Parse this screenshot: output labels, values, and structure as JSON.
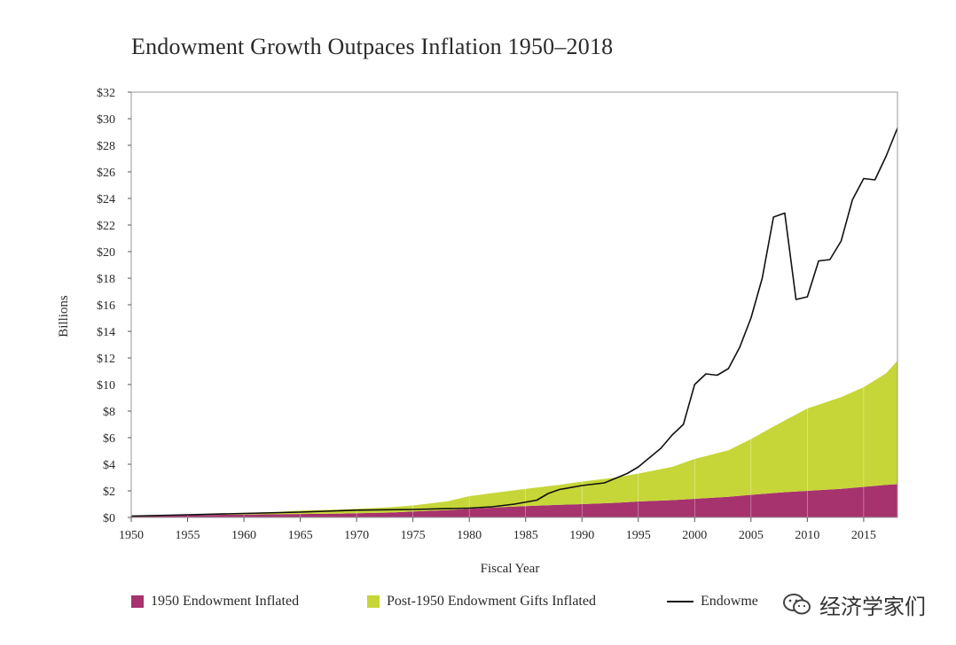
{
  "title": "Endowment Growth Outpaces Inflation 1950–2018",
  "chart_data": {
    "type": "area",
    "title": "Endowment Growth Outpaces Inflation 1950–2018",
    "xlabel": "Fiscal Year",
    "ylabel": "Billions",
    "xlim": [
      1950,
      2018
    ],
    "ylim": [
      0,
      32
    ],
    "x_ticks": [
      "1950",
      "1955",
      "1960",
      "1965",
      "1970",
      "1975",
      "1980",
      "1985",
      "1990",
      "1995",
      "2000",
      "2005",
      "2010",
      "2015"
    ],
    "y_ticks": [
      "$0",
      "$2",
      "$4",
      "$6",
      "$8",
      "$10",
      "$12",
      "$14",
      "$16",
      "$18",
      "$20",
      "$22",
      "$24",
      "$26",
      "$28",
      "$30",
      "$32"
    ],
    "grid": "vertical",
    "legend_position": "bottom",
    "x": [
      1950,
      1952,
      1955,
      1958,
      1960,
      1963,
      1965,
      1968,
      1970,
      1973,
      1975,
      1978,
      1980,
      1983,
      1985,
      1988,
      1990,
      1993,
      1995,
      1998,
      2000,
      2003,
      2005,
      2008,
      2010,
      2013,
      2015,
      2017,
      2018
    ],
    "series": [
      {
        "name": "1950 Endowment Inflated",
        "type": "area",
        "color": "#a6336e",
        "values": [
          0.15,
          0.16,
          0.17,
          0.2,
          0.22,
          0.24,
          0.26,
          0.28,
          0.32,
          0.37,
          0.45,
          0.55,
          0.65,
          0.78,
          0.85,
          0.95,
          1.0,
          1.1,
          1.2,
          1.3,
          1.4,
          1.55,
          1.7,
          1.9,
          2.0,
          2.15,
          2.3,
          2.45,
          2.5
        ]
      },
      {
        "name": "Post-1950 Endowment Gifts Inflated",
        "type": "stacked-area",
        "color": "#c6d638",
        "values": [
          0.0,
          0.02,
          0.05,
          0.08,
          0.12,
          0.18,
          0.26,
          0.3,
          0.33,
          0.4,
          0.45,
          0.65,
          0.95,
          1.15,
          1.3,
          1.5,
          1.7,
          1.9,
          2.1,
          2.5,
          3.0,
          3.5,
          4.2,
          5.4,
          6.2,
          6.9,
          7.5,
          8.4,
          9.3
        ]
      },
      {
        "name": "Endowment Value",
        "type": "line",
        "color": "#111111",
        "x": [
          1950,
          1955,
          1960,
          1965,
          1970,
          1975,
          1980,
          1982,
          1984,
          1986,
          1987,
          1988,
          1990,
          1992,
          1994,
          1995,
          1996,
          1997,
          1998,
          1999,
          2000,
          2001,
          2002,
          2003,
          2004,
          2005,
          2006,
          2007,
          2008,
          2009,
          2010,
          2011,
          2012,
          2013,
          2014,
          2015,
          2016,
          2017,
          2018
        ],
        "values": [
          0.1,
          0.2,
          0.3,
          0.4,
          0.55,
          0.6,
          0.7,
          0.8,
          1.0,
          1.3,
          1.8,
          2.1,
          2.4,
          2.6,
          3.3,
          3.8,
          4.5,
          5.2,
          6.2,
          7.0,
          10.0,
          10.8,
          10.7,
          11.2,
          12.8,
          15.0,
          18.0,
          22.6,
          22.9,
          16.4,
          16.6,
          19.3,
          19.4,
          20.8,
          23.9,
          25.5,
          25.4,
          27.2,
          29.3
        ]
      }
    ]
  },
  "legend": {
    "item1": "1950 Endowment Inflated",
    "item2": "Post-1950 Endowment Gifts Inflated",
    "item3": "Endowme"
  },
  "watermark": {
    "text": "经济学家们"
  }
}
